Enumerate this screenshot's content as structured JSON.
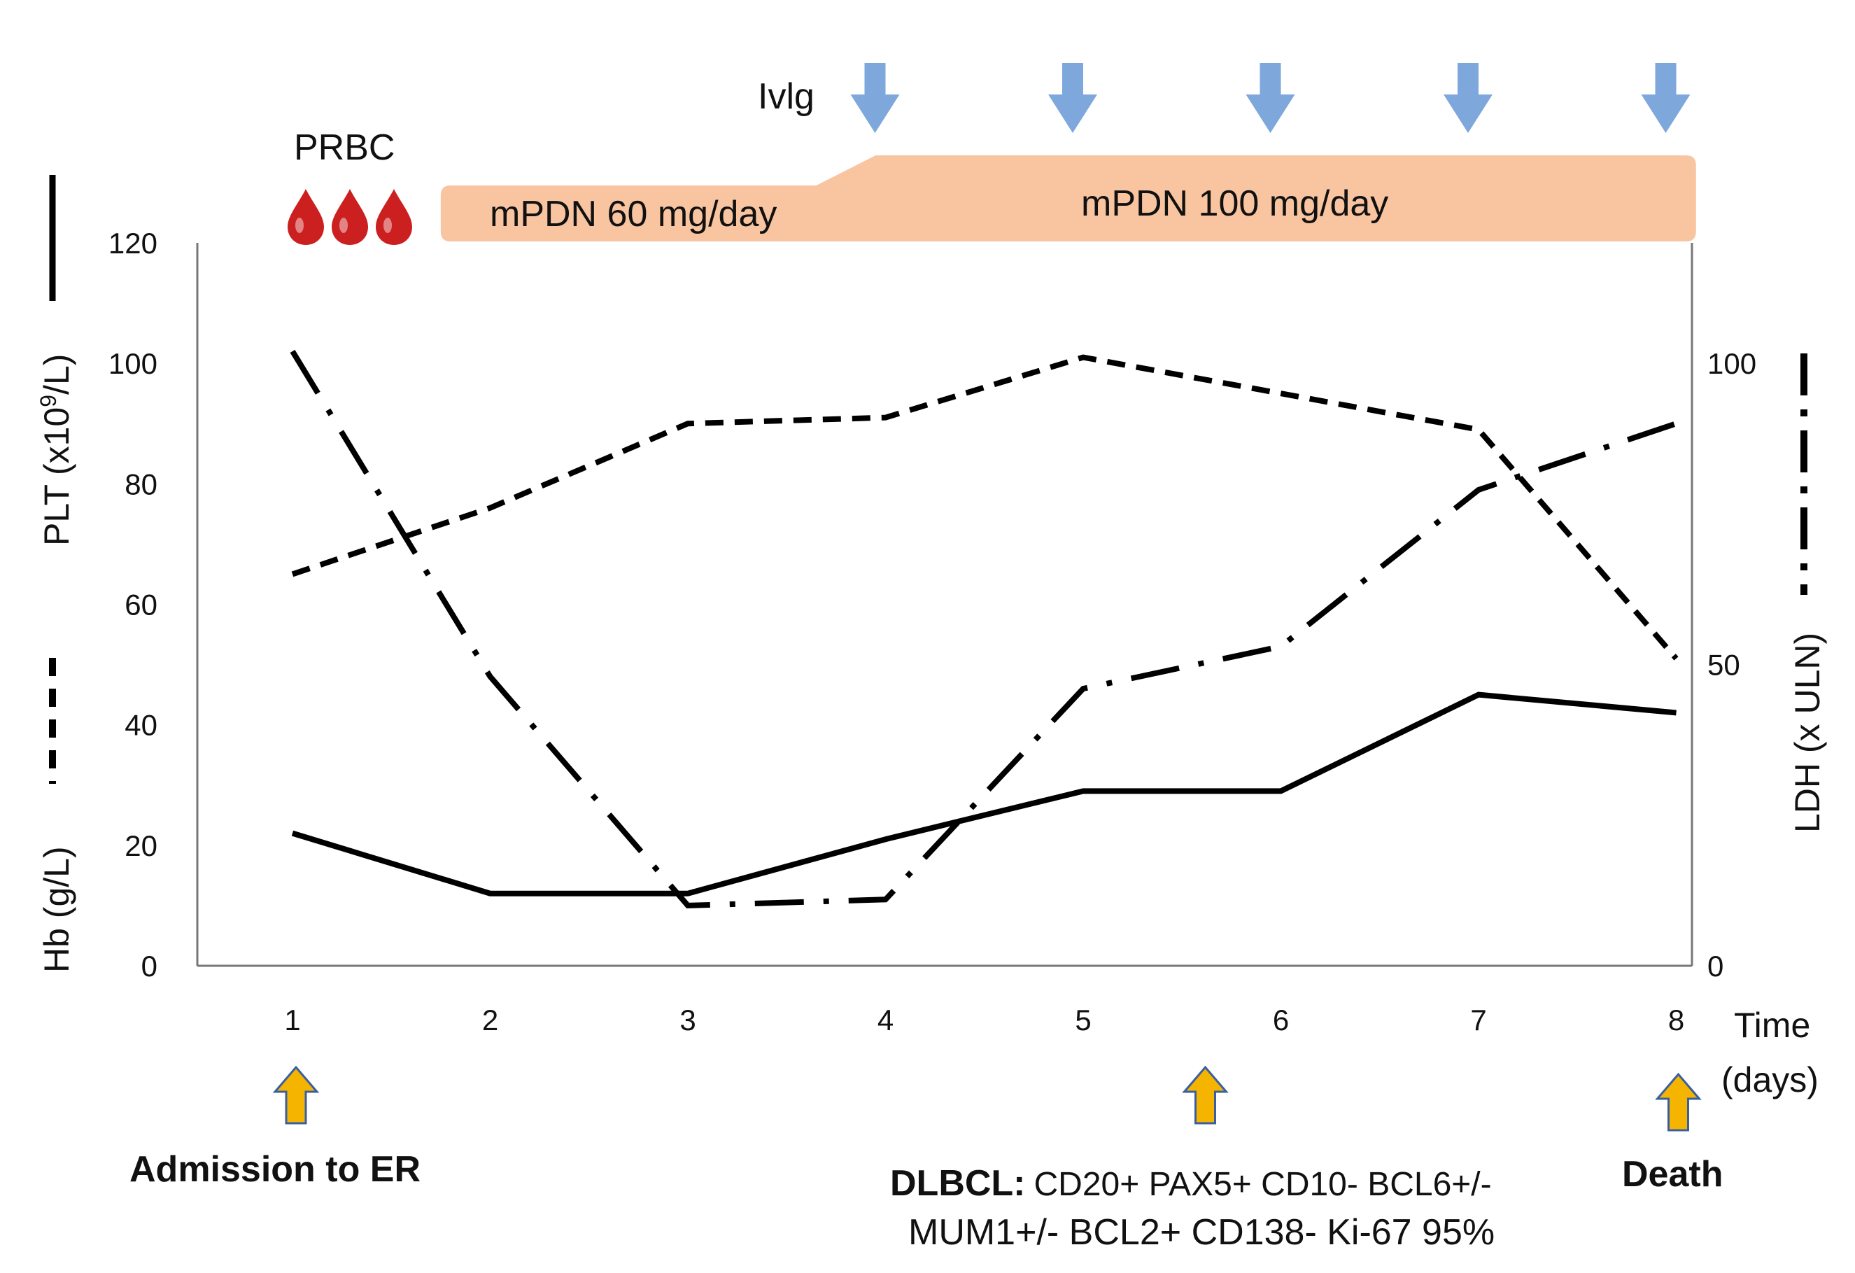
{
  "chart_data": {
    "type": "line",
    "title": "",
    "x": [
      1,
      2,
      3,
      4,
      5,
      6,
      7,
      8
    ],
    "xlabel_line1": "Time",
    "xlabel_line2": "(days)",
    "x_tick_labels": [
      "1",
      "2",
      "3",
      "4",
      "5",
      "6",
      "7",
      "8"
    ],
    "ylim_left": [
      0,
      120
    ],
    "y_left_ticks": [
      "0",
      "20",
      "40",
      "60",
      "80",
      "100",
      "120"
    ],
    "ylabel_left_plt": "PLT (x10",
    "ylabel_left_plt_sup": "9",
    "ylabel_left_plt_end": "/L)",
    "ylabel_left_hb": "Hb (g/L)",
    "ylim_right": [
      0,
      120
    ],
    "y_right_ticks": [
      "0",
      "50",
      "100"
    ],
    "y_right_tick_values": [
      0,
      50,
      100
    ],
    "ylabel_right": "LDH (x ULN)",
    "series": [
      {
        "name": "PLT",
        "axis": "left",
        "style": "solid",
        "values": [
          22,
          12,
          12,
          21,
          29,
          29,
          45,
          42
        ]
      },
      {
        "name": "Hb",
        "axis": "left",
        "style": "dashed",
        "values": [
          65,
          76,
          90,
          91,
          101,
          95,
          89,
          51
        ]
      },
      {
        "name": "LDH",
        "axis": "right",
        "style": "dashdot",
        "values": [
          102,
          48,
          10,
          11,
          46,
          53,
          79,
          90
        ]
      }
    ],
    "legend_colors": {
      "plt": "#000000",
      "hb": "#000000",
      "ldh": "#000000"
    }
  },
  "annotations": {
    "prbc_label": "PRBC",
    "prbc_units": 3,
    "prbc_color": "#cc1f1f",
    "ivig_label": "Ivlg",
    "ivig_days": [
      4,
      5,
      6,
      7,
      8
    ],
    "ivig_color": "#7ea7dc",
    "mpdn_60_label": "mPDN 60 mg/day",
    "mpdn_100_label": "mPDN 100 mg/day",
    "mpdn_60_days": [
      1.75,
      3.65
    ],
    "mpdn_100_days": [
      3.95,
      8.1
    ],
    "mpdn_color": "#f9c4a0",
    "event_arrow_color": "#f5b400",
    "events": [
      {
        "day": 1,
        "label": "Admission to ER"
      },
      {
        "day": 5.6,
        "label": "DLBCL:",
        "detail_line1": "CD20+ PAX5+ CD10- BCL6+/-",
        "detail_line2": "MUM1+/- BCL2+ CD138- Ki-67 95%"
      },
      {
        "day": 8,
        "label": "Death"
      }
    ]
  }
}
